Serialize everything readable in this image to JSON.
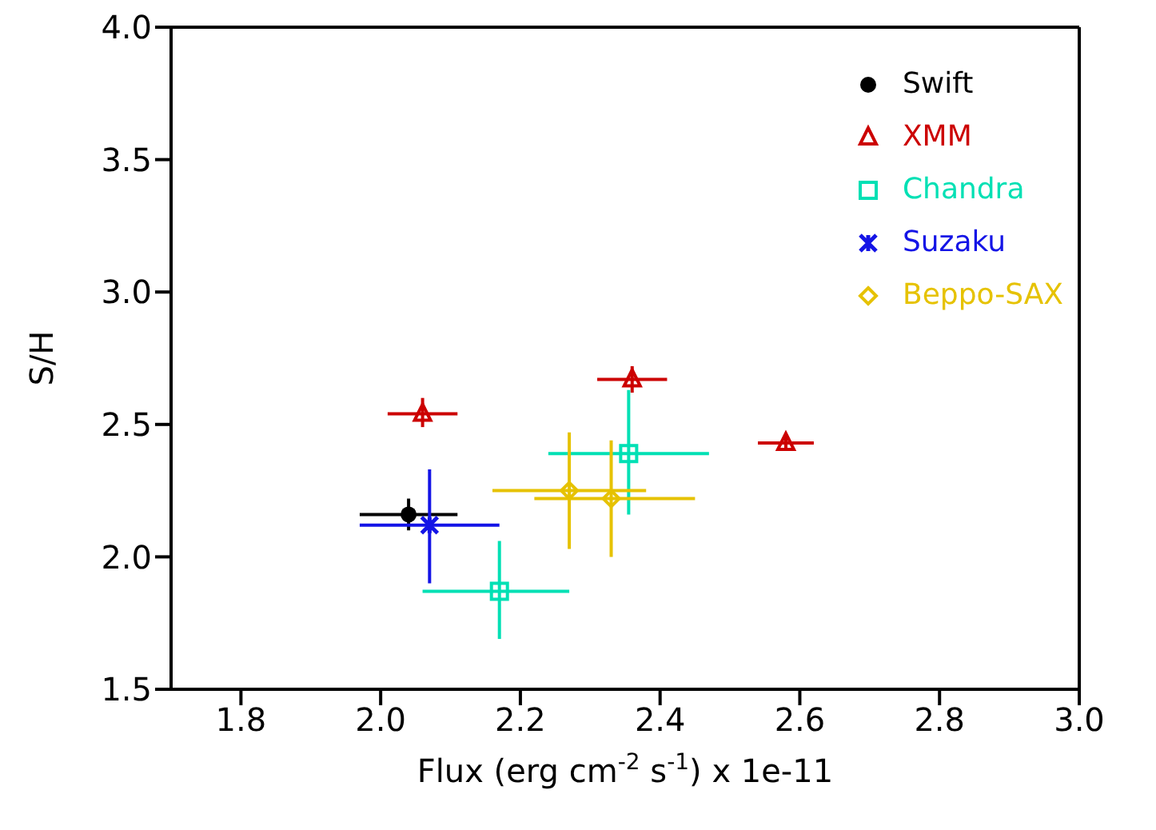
{
  "chart_data": {
    "type": "scatter",
    "xlabel": "Flux (erg cm$^{-2}$ s$^{-1}$) x 1e-11",
    "ylabel": "S/H",
    "xlim": [
      1.7,
      3.0
    ],
    "xticks": [
      1.8,
      {
        "value": 2,
        "label": "2.0"
      },
      2.2,
      2.4,
      2.6,
      2.8,
      {
        "value": 3,
        "label": "3.0"
      }
    ],
    "ylim": [
      1.5,
      4.0
    ],
    "yticks": [
      1.5,
      {
        "value": 2,
        "label": "2.0"
      },
      2.5,
      {
        "value": 3,
        "label": "3.0"
      },
      3.5,
      {
        "value": 4,
        "label": "4.0"
      }
    ],
    "legend": "top right",
    "series": [
      {
        "name": "Swift",
        "color": "#000000",
        "marker": "circle",
        "x": [
          2.04
        ],
        "values": [
          2.16
        ],
        "xerrors": [
          [
            1.97,
            2.11
          ]
        ],
        "errors": [
          [
            2.1,
            2.22
          ]
        ]
      },
      {
        "name": "XMM",
        "color": "#cc0000",
        "marker": "triangle",
        "x": [
          2.06,
          2.36,
          2.58
        ],
        "values": [
          2.54,
          2.67,
          2.43
        ],
        "xerrors": [
          [
            2.01,
            2.11
          ],
          [
            2.31,
            2.41
          ],
          [
            2.54,
            2.62
          ]
        ],
        "errors": [
          [
            2.49,
            2.6
          ],
          [
            2.62,
            2.72
          ],
          [
            2.41,
            2.46
          ]
        ]
      },
      {
        "name": "Chandra",
        "color": "#00e0b4",
        "marker": "square",
        "x": [
          2.17,
          2.355
        ],
        "values": [
          1.87,
          2.39
        ],
        "xerrors": [
          [
            2.06,
            2.27
          ],
          [
            2.24,
            2.47
          ]
        ],
        "errors": [
          [
            1.69,
            2.06
          ],
          [
            2.16,
            2.63
          ]
        ]
      },
      {
        "name": "Suzaku",
        "color": "#1414e6",
        "marker": "cross",
        "x": [
          2.07
        ],
        "values": [
          2.12
        ],
        "xerrors": [
          [
            1.97,
            2.17
          ]
        ],
        "errors": [
          [
            1.9,
            2.33
          ]
        ]
      },
      {
        "name": "Beppo-SAX",
        "color": "#e6c200",
        "marker": "diamond",
        "x": [
          2.27,
          2.33
        ],
        "values": [
          2.25,
          2.22
        ],
        "xerrors": [
          [
            2.16,
            2.38
          ],
          [
            2.22,
            2.45
          ]
        ],
        "errors": [
          [
            2.03,
            2.47
          ],
          [
            2.0,
            2.44
          ]
        ]
      }
    ]
  }
}
